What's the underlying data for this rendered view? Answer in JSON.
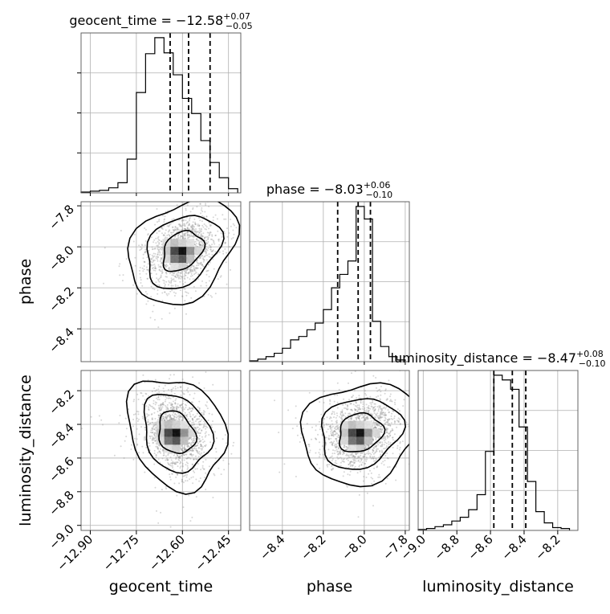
{
  "chart_data": {
    "type": "corner",
    "parameters": [
      "geocent_time",
      "phase",
      "luminosity_distance"
    ],
    "grid": true,
    "ranges": {
      "geocent_time": [
        -12.93,
        -12.41
      ],
      "phase": [
        -8.56,
        -7.78
      ],
      "luminosity_distance": [
        -9.03,
        -8.08
      ]
    },
    "ticks": {
      "geocent_time": [
        {
          "value": -12.9,
          "label": "−12.90"
        },
        {
          "value": -12.75,
          "label": "−12.75"
        },
        {
          "value": -12.6,
          "label": "−12.60"
        },
        {
          "value": -12.45,
          "label": "−12.45"
        }
      ],
      "phase": [
        {
          "value": -8.4,
          "label": "−8.4"
        },
        {
          "value": -8.2,
          "label": "−8.2"
        },
        {
          "value": -8.0,
          "label": "−8.0"
        },
        {
          "value": -7.8,
          "label": "−7.8"
        }
      ],
      "phase_y": [
        {
          "value": -7.8,
          "label": "−7.8"
        },
        {
          "value": -8.0,
          "label": "−8.0"
        },
        {
          "value": -8.2,
          "label": "−8.2"
        },
        {
          "value": -8.4,
          "label": "−8.4"
        }
      ],
      "luminosity_distance": [
        {
          "value": -9.0,
          "label": "−9.0"
        },
        {
          "value": -8.8,
          "label": "−8.8"
        },
        {
          "value": -8.6,
          "label": "−8.6"
        },
        {
          "value": -8.4,
          "label": "−8.4"
        },
        {
          "value": -8.2,
          "label": "−8.2"
        }
      ],
      "luminosity_distance_y": [
        {
          "value": -8.2,
          "label": "−8.2"
        },
        {
          "value": -8.4,
          "label": "−8.4"
        },
        {
          "value": -8.6,
          "label": "−8.6"
        },
        {
          "value": -8.8,
          "label": "−8.8"
        },
        {
          "value": -9.0,
          "label": "−9.0"
        }
      ]
    },
    "marginals": [
      {
        "parameter": "geocent_time",
        "title": {
          "main": "geocent_time = −12.58",
          "sup": "+0.07",
          "sub": "−0.05"
        },
        "quantiles": [
          -12.64,
          -12.58,
          -12.51
        ],
        "bin_edges": [
          -12.93,
          -12.9,
          -12.87,
          -12.84,
          -12.81,
          -12.78,
          -12.75,
          -12.72,
          -12.69,
          -12.66,
          -12.63,
          -12.6,
          -12.57,
          -12.54,
          -12.51,
          -12.48,
          -12.45,
          -12.42
        ],
        "counts": [
          1,
          2,
          3,
          6,
          12,
          40,
          119,
          165,
          184,
          166,
          140,
          112,
          94,
          62,
          36,
          18,
          5
        ]
      },
      {
        "parameter": "phase",
        "title": {
          "main": "phase = −8.03",
          "sup": "+0.06",
          "sub": "−0.10"
        },
        "quantiles": [
          -8.13,
          -8.03,
          -7.97
        ],
        "bin_edges": [
          -8.56,
          -8.52,
          -8.48,
          -8.44,
          -8.4,
          -8.36,
          -8.32,
          -8.28,
          -8.24,
          -8.2,
          -8.16,
          -8.12,
          -8.08,
          -8.04,
          -8.0,
          -7.96,
          -7.92,
          -7.88,
          -7.84,
          -7.8
        ],
        "counts": [
          1,
          3,
          6,
          10,
          16,
          26,
          30,
          38,
          46,
          62,
          88,
          104,
          120,
          185,
          170,
          48,
          18,
          6,
          2
        ]
      },
      {
        "parameter": "luminosity_distance",
        "title": {
          "main": "luminosity_distance = −8.47",
          "sup": "+0.08",
          "sub": "−0.10"
        },
        "quantiles": [
          -8.58,
          -8.47,
          -8.39
        ],
        "bin_edges": [
          -9.03,
          -8.98,
          -8.93,
          -8.88,
          -8.83,
          -8.78,
          -8.73,
          -8.68,
          -8.63,
          -8.58,
          -8.53,
          -8.48,
          -8.43,
          -8.38,
          -8.33,
          -8.28,
          -8.23,
          -8.18,
          -8.13
        ],
        "counts": [
          1,
          2,
          4,
          6,
          10,
          14,
          22,
          38,
          84,
          165,
          160,
          150,
          110,
          52,
          20,
          8,
          3,
          2
        ]
      }
    ],
    "joint": [
      {
        "x": "geocent_time",
        "y": "phase",
        "center": [
          -12.6,
          -8.02
        ],
        "spread": [
          0.055,
          0.085
        ],
        "correlation": 0.3
      },
      {
        "x": "geocent_time",
        "y": "luminosity_distance",
        "center": [
          -12.62,
          -8.45
        ],
        "spread": [
          0.05,
          0.11
        ],
        "correlation": -0.2
      },
      {
        "x": "phase",
        "y": "luminosity_distance",
        "center": [
          -8.02,
          -8.45
        ],
        "spread": [
          0.09,
          0.1
        ],
        "correlation": 0.15
      }
    ],
    "xlabels": [
      "geocent_time",
      "phase",
      "luminosity_distance"
    ],
    "ylabels": [
      "",
      "phase",
      "luminosity_distance"
    ]
  }
}
